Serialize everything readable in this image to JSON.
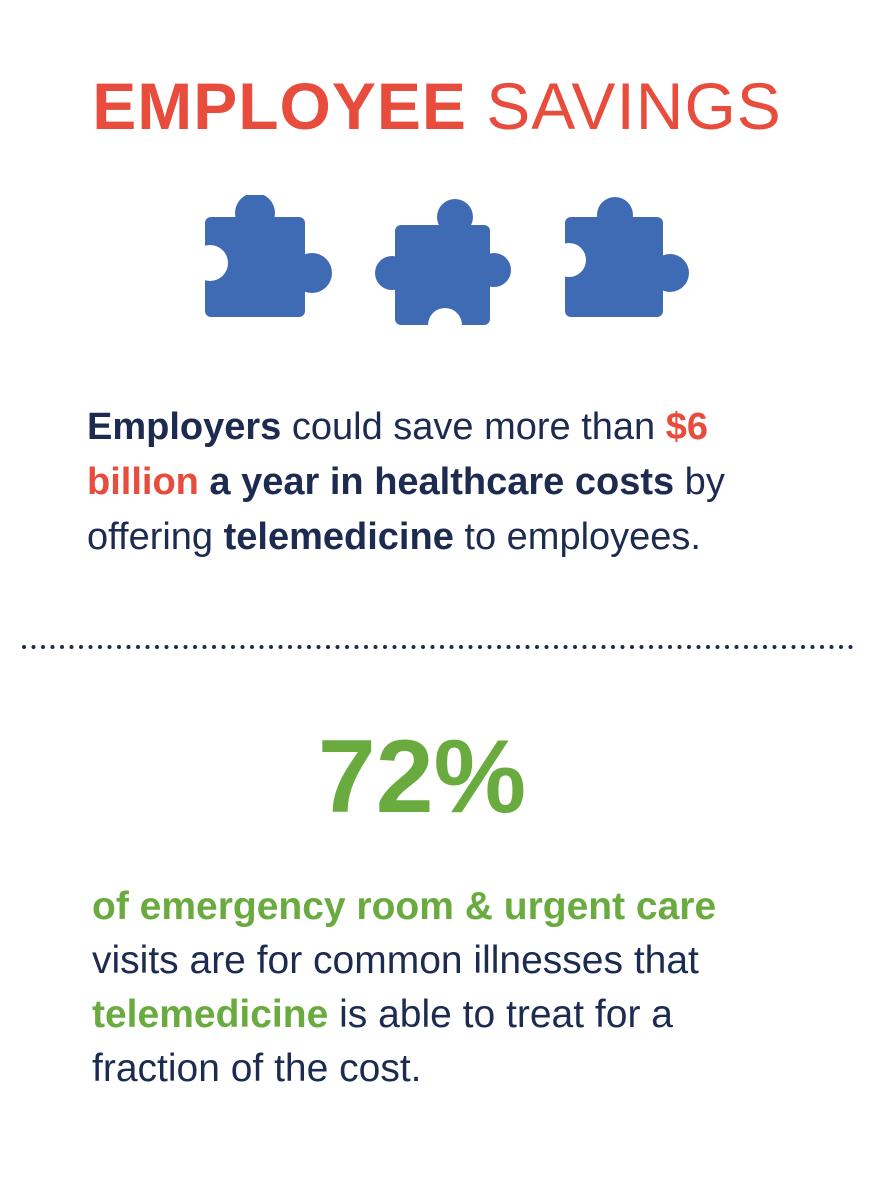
{
  "title": {
    "bold": "EMPLOYEE",
    "light": "SAVINGS",
    "color": "#e84c3d"
  },
  "paragraph1": {
    "lines": [
      [
        {
          "text": "Employers",
          "bold": true,
          "color": "#1c2b4f"
        },
        {
          "text": " could save more than ",
          "bold": false,
          "color": "#1c2b4f"
        },
        {
          "text": "$6",
          "bold": true,
          "color": "#e84c3d"
        }
      ],
      [
        {
          "text": "billion",
          "bold": true,
          "color": "#e84c3d"
        },
        {
          "text": " a year in healthcare costs",
          "bold": true,
          "color": "#1c2b4f"
        },
        {
          "text": " by",
          "bold": false,
          "color": "#1c2b4f"
        }
      ],
      [
        {
          "text": "offering ",
          "bold": false,
          "color": "#1c2b4f"
        },
        {
          "text": "telemedicine",
          "bold": true,
          "color": "#1c2b4f"
        },
        {
          "text": " to employees.",
          "bold": false,
          "color": "#1c2b4f"
        }
      ]
    ]
  },
  "stat": {
    "text": "72%",
    "color": "#6aab3f"
  },
  "paragraph2": {
    "lines": [
      [
        {
          "text": "of emergency room & urgent care",
          "bold": true,
          "color": "#6aab3f"
        }
      ],
      [
        {
          "text": "visits are for common illnesses that",
          "bold": false,
          "color": "#1c2b4f"
        }
      ],
      [
        {
          "text": "telemedicine",
          "bold": true,
          "color": "#6aab3f"
        },
        {
          "text": " is able to treat for a",
          "bold": false,
          "color": "#1c2b4f"
        }
      ],
      [
        {
          "text": "fraction of the cost.",
          "bold": false,
          "color": "#1c2b4f"
        }
      ]
    ]
  }
}
